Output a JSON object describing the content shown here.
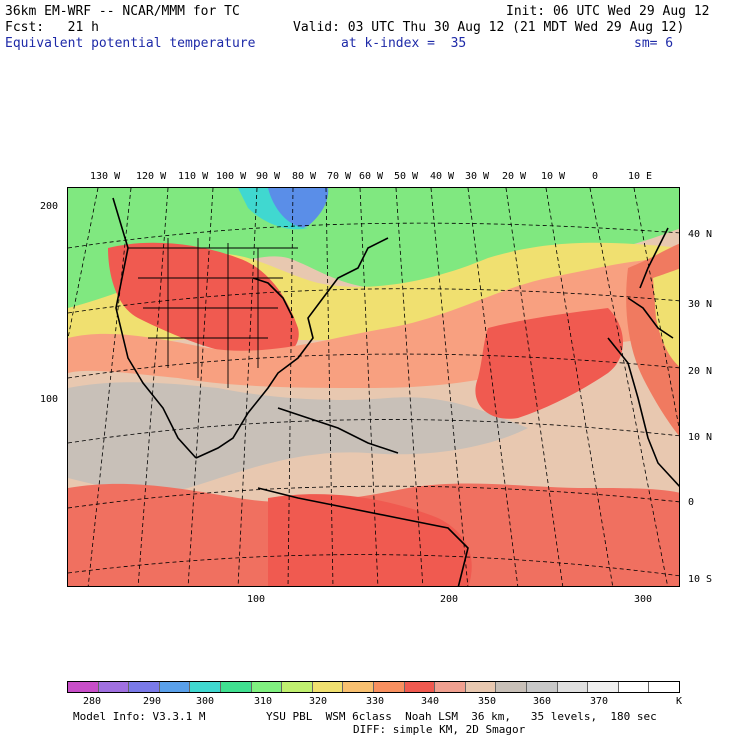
{
  "header": {
    "model": "36km EM-WRF -- NCAR/MMM for TC",
    "init": "Init: 06 UTC Wed 29 Aug 12",
    "fcst": "Fcst:   21 h",
    "valid": "Valid: 03 UTC Thu 30 Aug 12 (21 MDT Wed 29 Aug 12)",
    "field": "Equivalent potential temperature",
    "level": "at k-index =  35",
    "smooth": "sm= 6"
  },
  "longitude_labels": [
    "130 W",
    "120 W",
    "110 W",
    "100 W",
    "90 W",
    "80 W",
    "70 W",
    "60 W",
    "50 W",
    "40 W",
    "30 W",
    "20 W",
    "10 W",
    "0",
    "10 E"
  ],
  "latitude_labels": [
    "40 N",
    "30 N",
    "20 N",
    "10 N",
    "0",
    "10 S"
  ],
  "grid_y_labels": [
    "200",
    "100"
  ],
  "grid_x_labels": [
    "100",
    "200",
    "300"
  ],
  "colorbar": {
    "unit": "K",
    "labels": [
      "280",
      "290",
      "300",
      "310",
      "320",
      "330",
      "340",
      "350",
      "360",
      "370"
    ],
    "colors": [
      "#c84ec8",
      "#a070e0",
      "#7a7ae8",
      "#5aa0ea",
      "#40d8d0",
      "#40e090",
      "#80f080",
      "#c0f070",
      "#f0e070",
      "#f8c070",
      "#f89060",
      "#f05a50",
      "#f0a090",
      "#e8c8b0",
      "#c8c0b8",
      "#c8c8c8",
      "#e0e0e0",
      "#f0f0f0",
      "#ffffff",
      "#ffffff"
    ]
  },
  "footer": {
    "model_info": "Model Info: V3.3.1 M",
    "physics": "YSU PBL  WSM 6class  Noah LSM  36 km,   35 levels,  180 sec",
    "diffusion": "DIFF: simple KM, 2D Smagor"
  }
}
